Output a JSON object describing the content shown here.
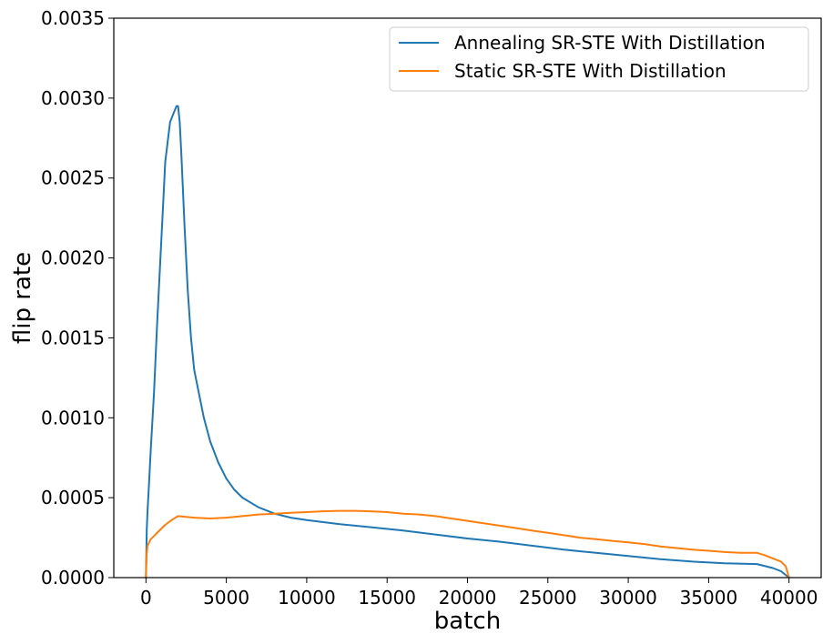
{
  "chart_data": {
    "type": "line",
    "title": "",
    "xlabel": "batch",
    "ylabel": "flip rate",
    "xlim": [
      -2000,
      42000
    ],
    "ylim": [
      0,
      0.0035
    ],
    "xticks": [
      0,
      5000,
      10000,
      15000,
      20000,
      25000,
      30000,
      35000,
      40000
    ],
    "xtick_labels": [
      "0",
      "5000",
      "10000",
      "15000",
      "20000",
      "25000",
      "30000",
      "35000",
      "40000"
    ],
    "yticks": [
      0,
      0.0005,
      0.001,
      0.0015,
      0.002,
      0.0025,
      0.003,
      0.0035
    ],
    "ytick_labels": [
      "0.0000",
      "0.0005",
      "0.0010",
      "0.0015",
      "0.0020",
      "0.0025",
      "0.0030",
      "0.0035"
    ],
    "grid": false,
    "legend_position": "top-right",
    "series": [
      {
        "name": "Annealing SR-STE With Distillation",
        "color": "#1f77b4",
        "x": [
          0,
          50,
          100,
          200,
          300,
          500,
          700,
          1000,
          1200,
          1500,
          1700,
          1900,
          2000,
          2100,
          2200,
          2400,
          2600,
          2800,
          3000,
          3300,
          3600,
          4000,
          4500,
          5000,
          5500,
          6000,
          7000,
          8000,
          9000,
          10000,
          12000,
          14000,
          16000,
          18000,
          20000,
          22000,
          24000,
          26000,
          28000,
          30000,
          32000,
          34000,
          36000,
          38000,
          39000,
          39500,
          40000
        ],
        "y": [
          0.0,
          0.0003,
          0.00042,
          0.0006,
          0.0008,
          0.00115,
          0.0016,
          0.0022,
          0.0026,
          0.00285,
          0.0029,
          0.00295,
          0.00295,
          0.00285,
          0.00265,
          0.0022,
          0.0018,
          0.0015,
          0.0013,
          0.00115,
          0.001,
          0.00085,
          0.00072,
          0.00062,
          0.00055,
          0.0005,
          0.00044,
          0.0004,
          0.000375,
          0.00036,
          0.000335,
          0.000315,
          0.000295,
          0.00027,
          0.000245,
          0.000225,
          0.0002,
          0.000175,
          0.000155,
          0.000135,
          0.000115,
          0.0001,
          9e-05,
          8.5e-05,
          6e-05,
          4e-05,
          0.0
        ]
      },
      {
        "name": "Static SR-STE With Distillation",
        "color": "#ff7f0e",
        "x": [
          0,
          50,
          100,
          300,
          500,
          800,
          1200,
          1600,
          2000,
          2500,
          3000,
          4000,
          5000,
          6000,
          7000,
          8000,
          9000,
          10000,
          11000,
          12000,
          13000,
          14000,
          15000,
          16000,
          17000,
          18000,
          19000,
          20000,
          21000,
          22000,
          23000,
          24000,
          25000,
          26000,
          27000,
          28000,
          29000,
          30000,
          31000,
          32000,
          33000,
          34000,
          35000,
          36000,
          37000,
          38000,
          38500,
          39000,
          39500,
          39800,
          40000
        ],
        "y": [
          0.0,
          0.00015,
          0.0002,
          0.00024,
          0.00026,
          0.00029,
          0.00033,
          0.00036,
          0.000385,
          0.00038,
          0.000375,
          0.00037,
          0.000375,
          0.000385,
          0.000395,
          0.0004,
          0.000405,
          0.00041,
          0.000415,
          0.000418,
          0.000418,
          0.000415,
          0.00041,
          0.0004,
          0.000395,
          0.000385,
          0.00037,
          0.000355,
          0.00034,
          0.000325,
          0.00031,
          0.000295,
          0.00028,
          0.000265,
          0.00025,
          0.00024,
          0.00023,
          0.00022,
          0.00021,
          0.000195,
          0.000185,
          0.000175,
          0.000168,
          0.00016,
          0.000155,
          0.000155,
          0.00014,
          0.00012,
          0.0001,
          7e-05,
          0.0
        ]
      }
    ]
  }
}
